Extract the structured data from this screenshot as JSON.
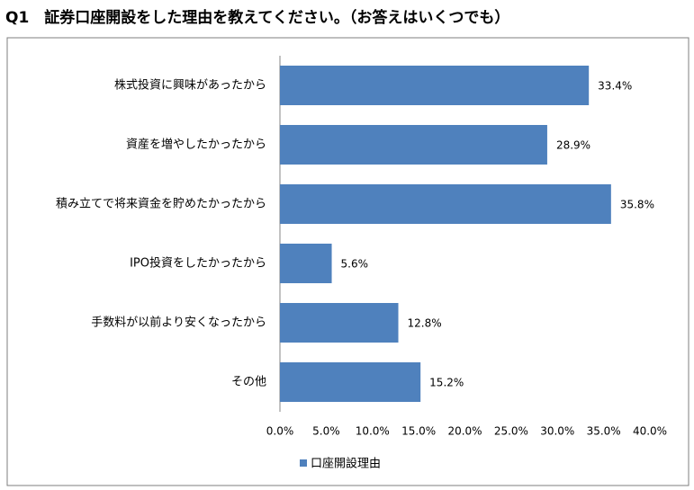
{
  "chart_data": {
    "type": "barh",
    "title": "Q1　証券口座開設をした理由を教えてください。（お答えはいくつでも）",
    "categories": [
      "株式投資に興味があったから",
      "資産を増やしたかったから",
      "積み立てで将来資金を貯めたかったから",
      "IPO投資をしたかったから",
      "手数料が以前より安くなったから",
      "その他"
    ],
    "series": [
      {
        "name": "口座開設理由",
        "color": "#4f81bd",
        "values": [
          33.4,
          28.9,
          35.8,
          5.6,
          12.8,
          15.2
        ],
        "value_labels": [
          "33.4%",
          "28.9%",
          "35.8%",
          "5.6%",
          "12.8%",
          "15.2%"
        ]
      }
    ],
    "xlim": [
      0,
      40
    ],
    "xticks": [
      {
        "value": 0,
        "label": "0.0%"
      },
      {
        "value": 5,
        "label": "5.0%"
      },
      {
        "value": 10,
        "label": "10.0%"
      },
      {
        "value": 15,
        "label": "15.0%"
      },
      {
        "value": 20,
        "label": "20.0%"
      },
      {
        "value": 25,
        "label": "25.0%"
      },
      {
        "value": 30,
        "label": "30.0%"
      },
      {
        "value": 35,
        "label": "35.0%"
      },
      {
        "value": 40,
        "label": "40.0%"
      }
    ],
    "grid": false,
    "legend": "bottom"
  }
}
